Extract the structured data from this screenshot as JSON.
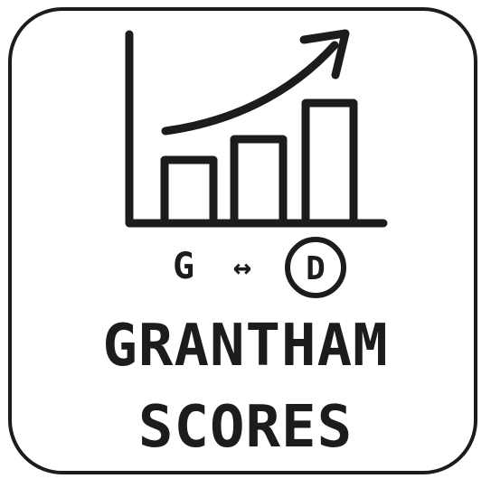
{
  "icon": {
    "name": "bar-chart-trending-up-icon",
    "from_letter": "G",
    "to_letter": "D",
    "mapping_symbol": "↔"
  },
  "title": {
    "line1": "GRANTHAM",
    "line2": "SCORES"
  },
  "colors": {
    "ink": "#1c1c1c",
    "background": "#ffffff"
  }
}
